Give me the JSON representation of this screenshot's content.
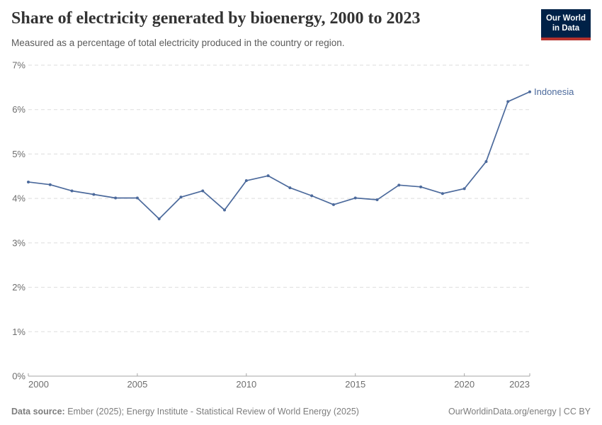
{
  "header": {
    "title": "Share of electricity generated by bioenergy, 2000 to 2023",
    "subtitle": "Measured as a percentage of total electricity produced in the country or region.",
    "logo": {
      "line1": "Our World",
      "line2": "in Data"
    }
  },
  "chart_data": {
    "type": "line",
    "title": "Share of electricity generated by bioenergy, 2000 to 2023",
    "x": [
      2000,
      2001,
      2002,
      2003,
      2004,
      2005,
      2006,
      2007,
      2008,
      2009,
      2010,
      2011,
      2012,
      2013,
      2014,
      2015,
      2016,
      2017,
      2018,
      2019,
      2020,
      2021,
      2022,
      2023
    ],
    "series": [
      {
        "name": "Indonesia",
        "color": "#4C6A9C",
        "values": [
          4.37,
          4.31,
          4.17,
          4.09,
          4.01,
          4.01,
          3.54,
          4.03,
          4.17,
          3.74,
          4.4,
          4.51,
          4.24,
          4.06,
          3.86,
          4.01,
          3.97,
          4.3,
          4.26,
          4.11,
          4.22,
          4.83,
          6.18,
          6.4
        ]
      }
    ],
    "xlabel": "",
    "ylabel": "",
    "xlim": [
      2000,
      2023
    ],
    "ylim": [
      0,
      7
    ],
    "x_tick_labels": [
      "2000",
      "2005",
      "2010",
      "2015",
      "2020",
      "2023"
    ],
    "y_tick_labels": [
      "0%",
      "1%",
      "2%",
      "3%",
      "4%",
      "5%",
      "6%",
      "7%"
    ],
    "grid": "horizontal-dashed",
    "legend_position": "end-of-line"
  },
  "footer": {
    "datasource_label": "Data source:",
    "datasource_text": " Ember (2025); Energy Institute - Statistical Review of World Energy (2025)",
    "attribution": "OurWorldinData.org/energy | CC BY"
  },
  "colors": {
    "line": "#4C6A9C",
    "gridline": "#dddddd",
    "axis": "#a6a6a6",
    "tick_label": "#6e6e6e",
    "title": "#333333",
    "subtitle": "#5b5b5b",
    "footer": "#7d7d7d",
    "logo_background": "#002147",
    "logo_accent": "#b5312c"
  }
}
